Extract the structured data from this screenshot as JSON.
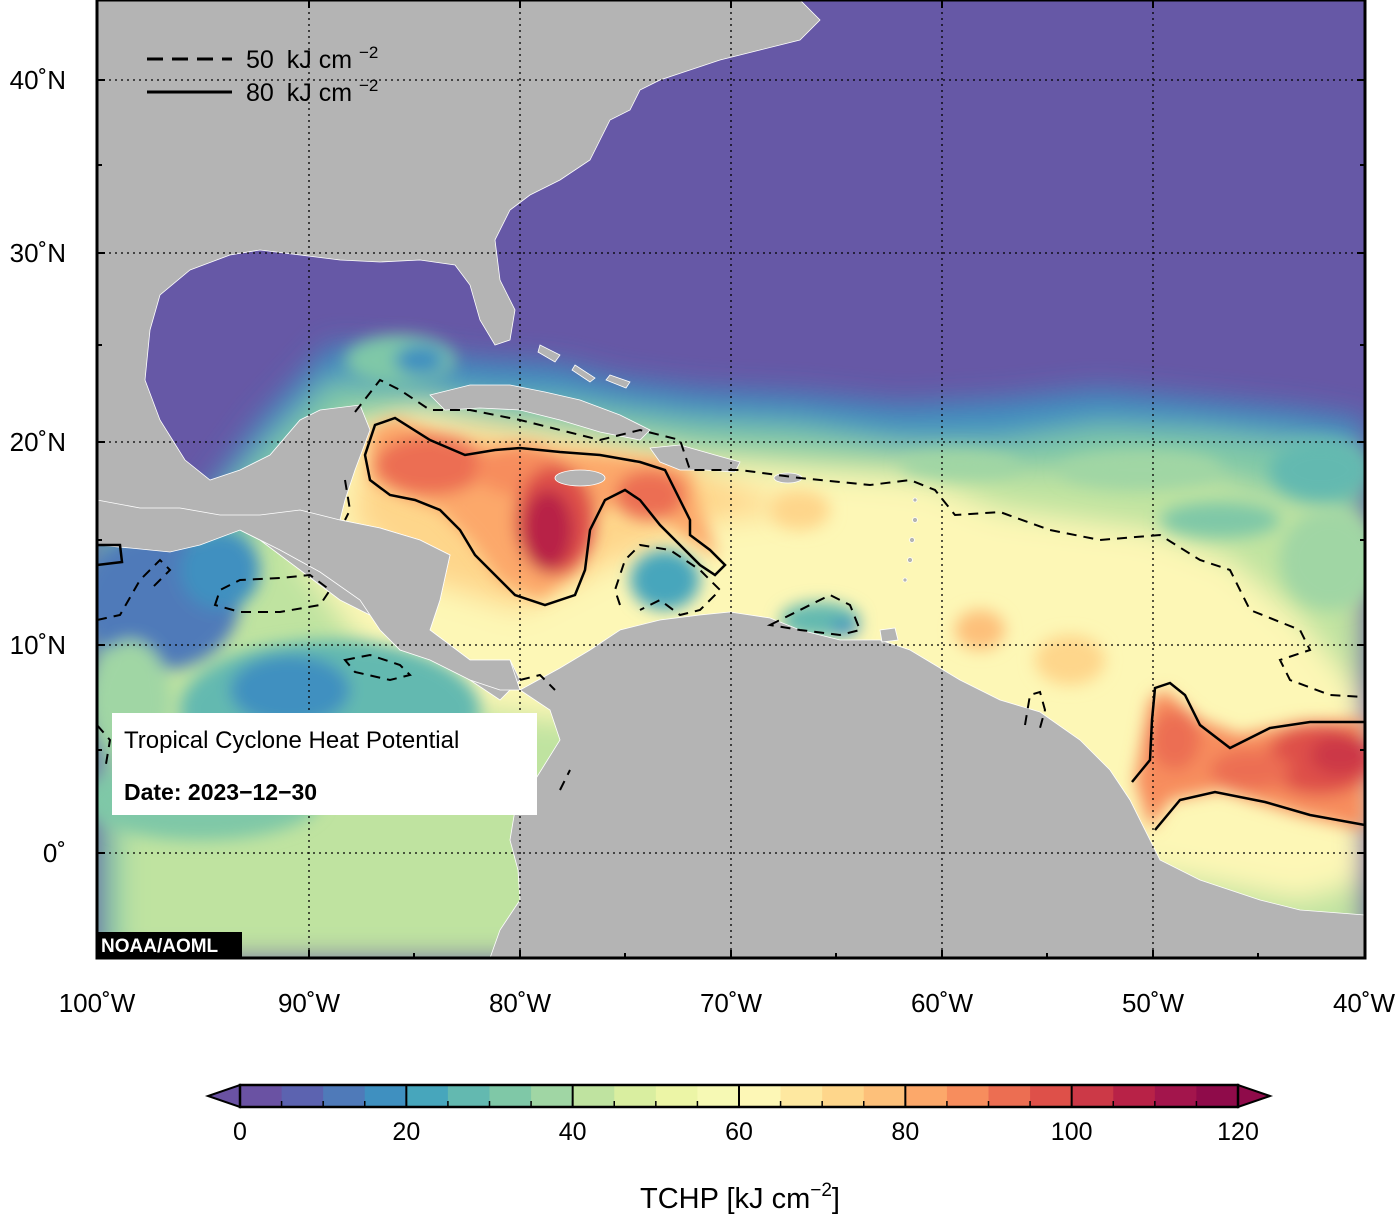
{
  "map": {
    "region": {
      "lon_min": -100,
      "lon_max": -40,
      "lat_min": -5,
      "lat_max": 44
    },
    "lon_ticks": [
      {
        "value": -100,
        "label": "100˚W"
      },
      {
        "value": -90,
        "label": "90˚W"
      },
      {
        "value": -80,
        "label": "80˚W"
      },
      {
        "value": -70,
        "label": "70˚W"
      },
      {
        "value": -60,
        "label": "60˚W"
      },
      {
        "value": -50,
        "label": "50˚W"
      },
      {
        "value": -40,
        "label": "40˚W"
      }
    ],
    "lat_ticks": [
      {
        "value": 0,
        "label": "0˚"
      },
      {
        "value": 10,
        "label": "10˚N"
      },
      {
        "value": 20,
        "label": "20˚N"
      },
      {
        "value": 30,
        "label": "30˚N"
      },
      {
        "value": 40,
        "label": "40˚N"
      }
    ],
    "grid": "dotted",
    "land_color": "#b4b4b4",
    "low_value_color": "#6658a6",
    "credit": "NOAA/AOML"
  },
  "legend": {
    "position": "top-left",
    "entries": [
      {
        "style": "dashed",
        "value": "50",
        "unit": "kJ cm",
        "exponent": "−2"
      },
      {
        "style": "solid",
        "value": "80",
        "unit": "kJ cm",
        "exponent": "−2"
      }
    ]
  },
  "info_box": {
    "title": "Tropical Cyclone Heat Potential",
    "date": "Date: 2023−12−30"
  },
  "colorbar": {
    "min": 0,
    "max": 120,
    "ticks": [
      0,
      20,
      40,
      60,
      80,
      100,
      120
    ],
    "extend": "both",
    "title": "TCHP [kJ cm",
    "title_exponent": "−2",
    "title_suffix": "]",
    "colors": [
      "#6a52a3",
      "#5c63b0",
      "#4f7ab9",
      "#3f90c0",
      "#47a6bc",
      "#63b9b0",
      "#7fc8a7",
      "#a0d6a4",
      "#bfe3a0",
      "#d9eea0",
      "#ecf5a6",
      "#f6f9b4",
      "#fdf7b6",
      "#fee8a0",
      "#fed68b",
      "#fdc07a",
      "#fca86a",
      "#f78d5d",
      "#ec6e52",
      "#de5049",
      "#cc3947",
      "#b82247",
      "#a3154c",
      "#8f0b4a"
    ]
  }
}
